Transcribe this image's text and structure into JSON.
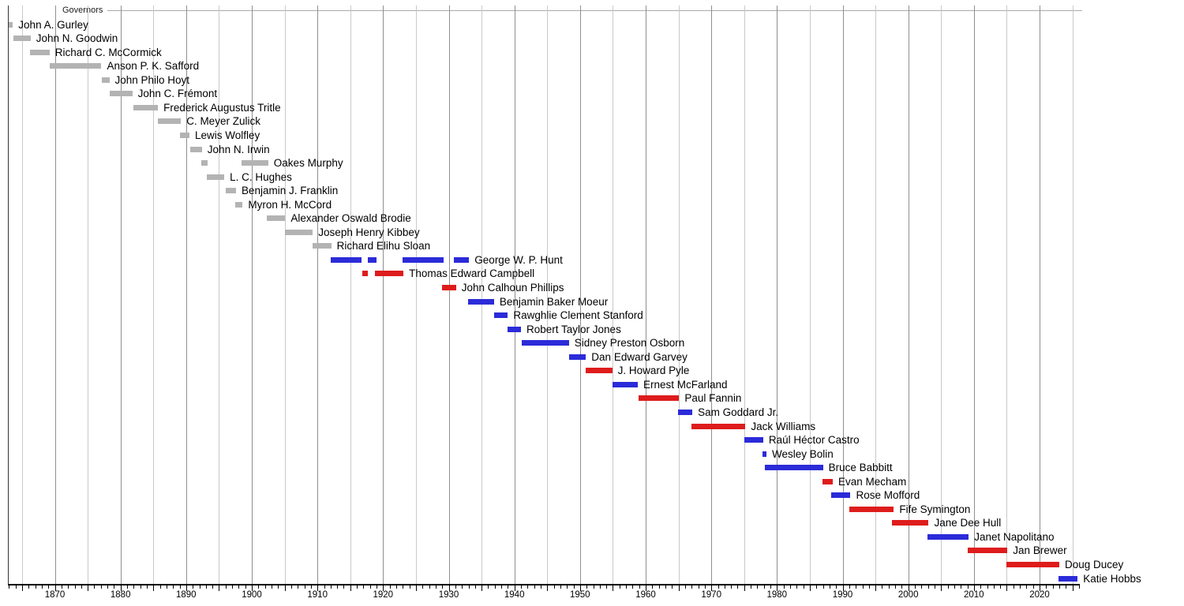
{
  "chart_data": {
    "type": "timeline",
    "title": "Governors",
    "subtitle": "",
    "legend_position": "none",
    "grid": "on",
    "x_axis": {
      "start_year": 1863,
      "end_year": 2026,
      "tick_step_years": 1,
      "major_tick_step_years": 5,
      "gridline_step_years": 5,
      "decade_labels": [
        "1870",
        "1880",
        "1890",
        "1900",
        "1910",
        "1920",
        "1930",
        "1940",
        "1950",
        "1960",
        "1970",
        "1980",
        "1990",
        "2000",
        "2010",
        "2020"
      ]
    },
    "party_colors": {
      "territorial": "#b3b3b3",
      "democratic": "#2b2bd9",
      "republican": "#de1c1c"
    },
    "grid_colors": {
      "decade": "#8f8f8f",
      "half_decade": "#c9c9c9"
    },
    "axis_color": "#000000",
    "frame_color": "#333333",
    "separator_line_color": "#aaaaaa",
    "governors": [
      {
        "name": "John A. Gurley",
        "party": "territorial",
        "terms": [
          [
            1862.9,
            1863.6
          ]
        ]
      },
      {
        "name": "John N. Goodwin",
        "party": "territorial",
        "terms": [
          [
            1863.7,
            1866.3
          ]
        ]
      },
      {
        "name": "Richard C. McCormick",
        "party": "territorial",
        "terms": [
          [
            1866.2,
            1869.2
          ]
        ]
      },
      {
        "name": "Anson P. K. Safford",
        "party": "territorial",
        "terms": [
          [
            1869.2,
            1877.1
          ]
        ]
      },
      {
        "name": "John Philo Hoyt",
        "party": "territorial",
        "terms": [
          [
            1877.1,
            1878.3
          ]
        ]
      },
      {
        "name": "John C. Frémont",
        "party": "territorial",
        "terms": [
          [
            1878.4,
            1881.8
          ]
        ]
      },
      {
        "name": "Frederick Augustus Tritle",
        "party": "territorial",
        "terms": [
          [
            1881.9,
            1885.7
          ]
        ]
      },
      {
        "name": "C. Meyer Zulick",
        "party": "territorial",
        "terms": [
          [
            1885.7,
            1889.2
          ]
        ]
      },
      {
        "name": "Lewis Wolfley",
        "party": "territorial",
        "terms": [
          [
            1889.1,
            1890.5
          ]
        ]
      },
      {
        "name": "John N. Irwin",
        "party": "territorial",
        "terms": [
          [
            1890.6,
            1892.4
          ]
        ]
      },
      {
        "name": "Oakes Murphy",
        "party": "territorial",
        "terms": [
          [
            1892.3,
            1893.2
          ],
          [
            1898.4,
            1902.5
          ]
        ]
      },
      {
        "name": "L. C. Hughes",
        "party": "territorial",
        "terms": [
          [
            1893.1,
            1895.8
          ]
        ]
      },
      {
        "name": "Benjamin J. Franklin",
        "party": "territorial",
        "terms": [
          [
            1896.0,
            1897.6
          ]
        ]
      },
      {
        "name": "Myron H. McCord",
        "party": "territorial",
        "terms": [
          [
            1897.5,
            1898.6
          ]
        ]
      },
      {
        "name": "Alexander Oswald Brodie",
        "party": "territorial",
        "terms": [
          [
            1902.3,
            1905.1
          ]
        ]
      },
      {
        "name": "Joseph Henry Kibbey",
        "party": "territorial",
        "terms": [
          [
            1905.0,
            1909.3
          ]
        ]
      },
      {
        "name": "Richard Elihu Sloan",
        "party": "territorial",
        "terms": [
          [
            1909.3,
            1912.1
          ]
        ]
      },
      {
        "name": "George W. P. Hunt",
        "party": "democratic",
        "terms": [
          [
            1912.0,
            1916.7
          ],
          [
            1917.7,
            1919.0
          ],
          [
            1922.9,
            1929.2
          ],
          [
            1930.8,
            1933.1
          ]
        ]
      },
      {
        "name": "Thomas Edward Campbell",
        "party": "republican",
        "terms": [
          [
            1916.8,
            1917.7
          ],
          [
            1918.7,
            1923.1
          ]
        ]
      },
      {
        "name": "John Calhoun Phillips",
        "party": "republican",
        "terms": [
          [
            1929.0,
            1931.1
          ]
        ]
      },
      {
        "name": "Benjamin Baker Moeur",
        "party": "democratic",
        "terms": [
          [
            1932.9,
            1936.9
          ]
        ]
      },
      {
        "name": "Rawghlie Clement Stanford",
        "party": "democratic",
        "terms": [
          [
            1936.9,
            1939.0
          ]
        ]
      },
      {
        "name": "Robert Taylor Jones",
        "party": "democratic",
        "terms": [
          [
            1938.9,
            1941.0
          ]
        ]
      },
      {
        "name": "Sidney Preston Osborn",
        "party": "democratic",
        "terms": [
          [
            1941.1,
            1948.3
          ]
        ]
      },
      {
        "name": "Dan Edward Garvey",
        "party": "democratic",
        "terms": [
          [
            1948.3,
            1950.9
          ]
        ]
      },
      {
        "name": "J. Howard Pyle",
        "party": "republican",
        "terms": [
          [
            1950.9,
            1954.9
          ]
        ]
      },
      {
        "name": "Ernest McFarland",
        "party": "democratic",
        "terms": [
          [
            1954.9,
            1958.8
          ]
        ]
      },
      {
        "name": "Paul Fannin",
        "party": "republican",
        "terms": [
          [
            1958.9,
            1965.1
          ]
        ]
      },
      {
        "name": "Sam Goddard Jr.",
        "party": "democratic",
        "terms": [
          [
            1964.9,
            1967.1
          ]
        ]
      },
      {
        "name": "Jack Williams",
        "party": "republican",
        "terms": [
          [
            1967.0,
            1975.2
          ]
        ]
      },
      {
        "name": "Raúl Héctor Castro",
        "party": "democratic",
        "terms": [
          [
            1975.0,
            1977.9
          ]
        ]
      },
      {
        "name": "Wesley Bolin",
        "party": "democratic",
        "terms": [
          [
            1977.8,
            1978.4
          ]
        ]
      },
      {
        "name": "Bruce Babbitt",
        "party": "democratic",
        "terms": [
          [
            1978.2,
            1987.0
          ]
        ]
      },
      {
        "name": "Evan Mecham",
        "party": "republican",
        "terms": [
          [
            1986.9,
            1988.5
          ]
        ]
      },
      {
        "name": "Rose Mofford",
        "party": "democratic",
        "terms": [
          [
            1988.3,
            1991.2
          ]
        ]
      },
      {
        "name": "Fife Symington",
        "party": "republican",
        "terms": [
          [
            1991.0,
            1997.8
          ]
        ]
      },
      {
        "name": "Jane Dee Hull",
        "party": "republican",
        "terms": [
          [
            1997.5,
            2003.1
          ]
        ]
      },
      {
        "name": "Janet Napolitano",
        "party": "democratic",
        "terms": [
          [
            2002.9,
            2009.2
          ]
        ]
      },
      {
        "name": "Jan Brewer",
        "party": "republican",
        "terms": [
          [
            2009.0,
            2015.1
          ]
        ]
      },
      {
        "name": "Doug Ducey",
        "party": "republican",
        "terms": [
          [
            2014.9,
            2023.0
          ]
        ]
      },
      {
        "name": "Katie Hobbs",
        "party": "democratic",
        "terms": [
          [
            2022.9,
            2025.8
          ]
        ]
      }
    ]
  }
}
